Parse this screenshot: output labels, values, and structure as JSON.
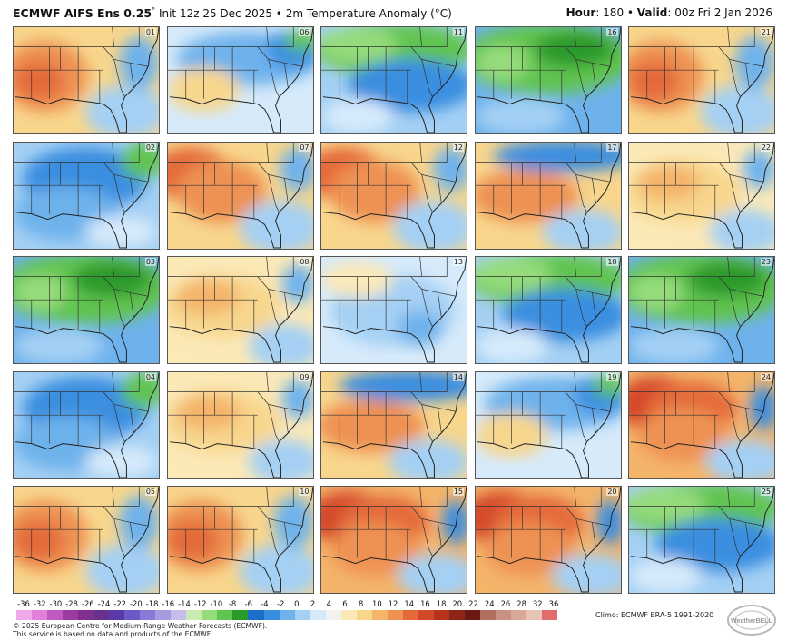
{
  "header": {
    "model": "ECMWF AIFS Ens 0.25",
    "degree_mark": "°",
    "details": "Init 12z 25 Dec 2025 • 2m Temperature Anomaly (°C)",
    "hour_label": "Hour",
    "hour_value": ": 180 •",
    "valid_label": "Valid",
    "valid_value": ": 00z Fri 2 Jan 2026"
  },
  "members": [
    {
      "id": "01",
      "pattern": "warm-west"
    },
    {
      "id": "06",
      "pattern": "cool-mild"
    },
    {
      "id": "11",
      "pattern": "cold-north"
    },
    {
      "id": "16",
      "pattern": "very-cold"
    },
    {
      "id": "21",
      "pattern": "warm-west"
    },
    {
      "id": "02",
      "pattern": "cool"
    },
    {
      "id": "07",
      "pattern": "warm"
    },
    {
      "id": "12",
      "pattern": "warm"
    },
    {
      "id": "17",
      "pattern": "warm-cool-north"
    },
    {
      "id": "22",
      "pattern": "mild-warm"
    },
    {
      "id": "03",
      "pattern": "very-cold"
    },
    {
      "id": "08",
      "pattern": "mild-warm"
    },
    {
      "id": "13",
      "pattern": "mixed-cool"
    },
    {
      "id": "18",
      "pattern": "cold-north"
    },
    {
      "id": "23",
      "pattern": "very-cold"
    },
    {
      "id": "04",
      "pattern": "cool"
    },
    {
      "id": "09",
      "pattern": "mild-warm"
    },
    {
      "id": "14",
      "pattern": "warm-cool-north"
    },
    {
      "id": "19",
      "pattern": "cool-mild"
    },
    {
      "id": "24",
      "pattern": "very-warm"
    },
    {
      "id": "05",
      "pattern": "warm-west"
    },
    {
      "id": "10",
      "pattern": "warm-west"
    },
    {
      "id": "15",
      "pattern": "very-warm"
    },
    {
      "id": "20",
      "pattern": "very-warm"
    },
    {
      "id": "25",
      "pattern": "cold-north"
    }
  ],
  "colorbar": {
    "ticks": [
      "-36",
      "-32",
      "-30",
      "-28",
      "-26",
      "-24",
      "-22",
      "-20",
      "-18",
      "-16",
      "-14",
      "-12",
      "-10",
      "-8",
      "-6",
      "-4",
      "-2",
      "0",
      "2",
      "4",
      "6",
      "8",
      "10",
      "12",
      "14",
      "16",
      "18",
      "20",
      "22",
      "24",
      "26",
      "28",
      "32",
      "36"
    ],
    "colors": [
      "#f0a8e8",
      "#e080d8",
      "#c058c0",
      "#9c3aa0",
      "#80308c",
      "#6a3090",
      "#5a3aa8",
      "#6a5ac8",
      "#8a7ad8",
      "#a89ae0",
      "#c8bcec",
      "#c8ecb0",
      "#96dc7c",
      "#60c450",
      "#2a9a2a",
      "#1a6ec8",
      "#3a8ee0",
      "#6eb2ec",
      "#a4d0f4",
      "#d6eafa",
      "#f2f2f2",
      "#fbe9b8",
      "#f8d68c",
      "#f4b46a",
      "#ee9252",
      "#e46a3a",
      "#d4482a",
      "#b8301e",
      "#8e2418",
      "#6a1a12",
      "#b07060",
      "#c89080",
      "#d8a898",
      "#e8c4b4",
      "#e06c6c"
    ]
  },
  "climo": "Climo: ECMWF ERA-5 1991-2020",
  "copyright_lines": [
    "© 2025 European Centre for Medium-Range Weather Forecasts (ECMWF).",
    "This service is based on data and products of the ECMWF."
  ],
  "logo_text": "WeatherBELL"
}
